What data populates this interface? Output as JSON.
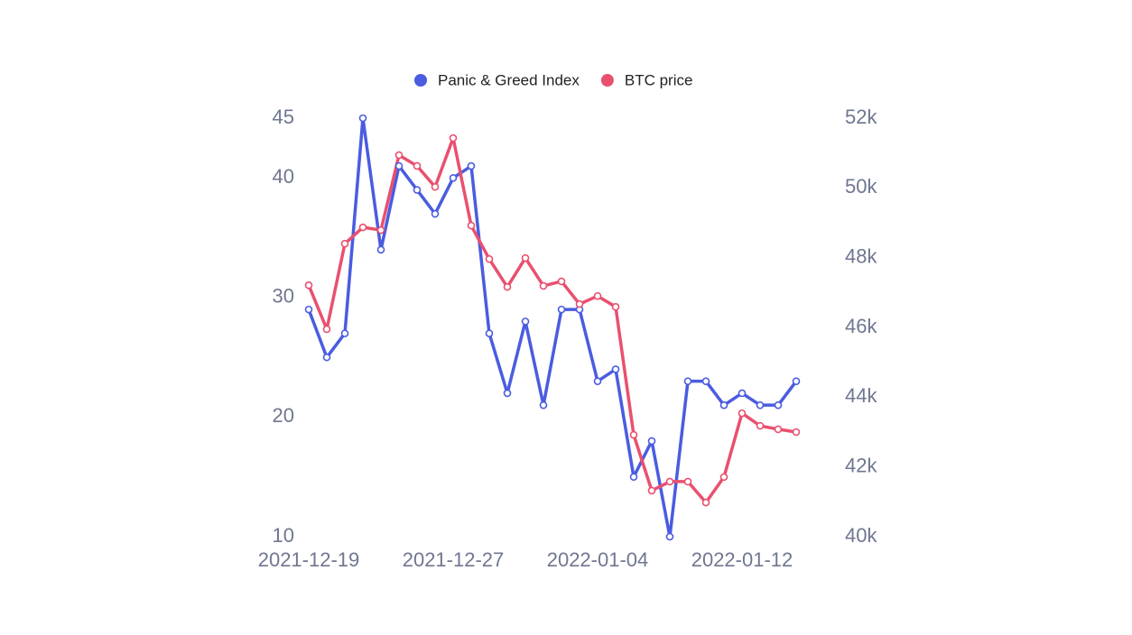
{
  "chart_data": {
    "type": "line",
    "categories": [
      "2021-12-19",
      null,
      null,
      null,
      null,
      null,
      null,
      null,
      "2021-12-27",
      null,
      null,
      null,
      null,
      null,
      null,
      null,
      "2022-01-04",
      null,
      null,
      null,
      null,
      null,
      null,
      null,
      "2022-01-12",
      null,
      null,
      null
    ],
    "series": [
      {
        "name": "Panic & Greed Index",
        "color": "#4a5ce0",
        "axis": "y",
        "values": [
          29,
          25,
          27,
          45,
          34,
          41,
          39,
          37,
          40,
          41,
          27,
          22,
          28,
          21,
          29,
          29,
          23,
          24,
          15,
          18,
          10,
          23,
          23,
          21,
          22,
          21,
          21,
          23
        ]
      },
      {
        "name": "BTC price",
        "color": "#e9506f",
        "axis": "y2",
        "values": [
          47210,
          45950,
          48400,
          48870,
          48790,
          50940,
          50630,
          50030,
          51430,
          48920,
          47960,
          47160,
          47990,
          47190,
          47320,
          46670,
          46900,
          46590,
          42920,
          41320,
          41580,
          41580,
          40980,
          41710,
          43540,
          43180,
          43080,
          43000
        ]
      }
    ],
    "ylim": [
      10,
      45
    ],
    "yticks": [
      10,
      20,
      30,
      40,
      45
    ],
    "y2lim": [
      40000,
      52000
    ],
    "y2ticks": [
      {
        "value": 40000,
        "label": "40k"
      },
      {
        "value": 42000,
        "label": "42k"
      },
      {
        "value": 44000,
        "label": "44k"
      },
      {
        "value": 46000,
        "label": "46k"
      },
      {
        "value": 48000,
        "label": "48k"
      },
      {
        "value": 50000,
        "label": "50k"
      },
      {
        "value": 52000,
        "label": "52k"
      }
    ],
    "legend": "top",
    "grid": false
  }
}
